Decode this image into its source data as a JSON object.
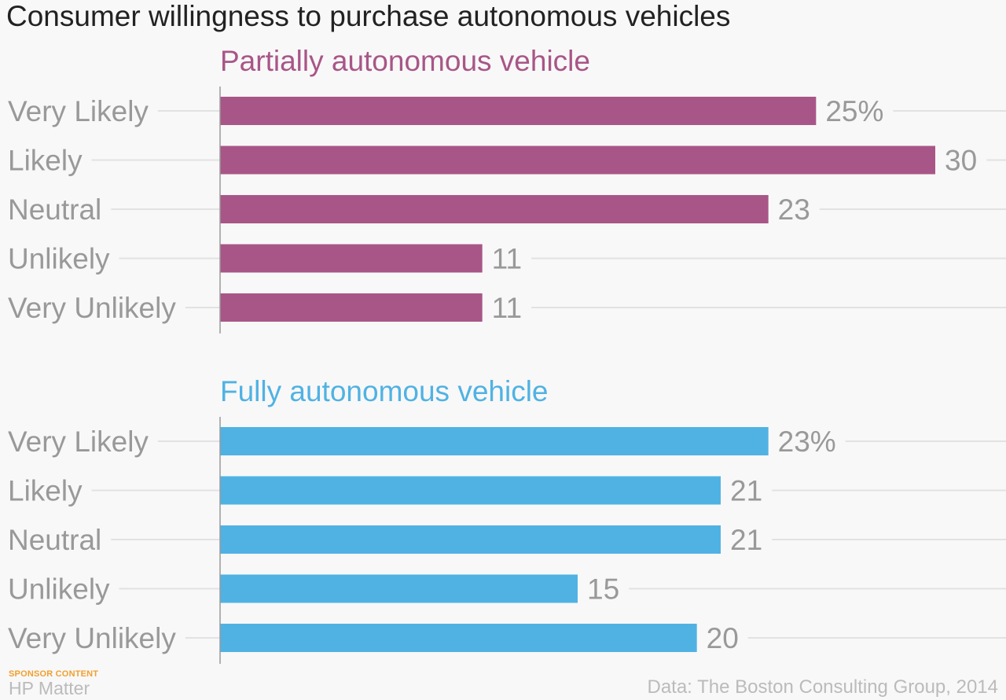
{
  "title": "Consumer willingness to purchase autonomous vehicles",
  "footer": {
    "sponsor": "SPONSOR CONTENT",
    "brand": "HP Matter",
    "source": "Data: The Boston Consulting Group, 2014"
  },
  "chart_data": [
    {
      "type": "bar",
      "orientation": "horizontal",
      "title": "Partially autonomous vehicle",
      "color": "#a85687",
      "categories": [
        "Very Likely",
        "Likely",
        "Neutral",
        "Unlikely",
        "Very Unlikely"
      ],
      "values": [
        25,
        30,
        23,
        11,
        11
      ],
      "value_labels": [
        "25%",
        "30",
        "23",
        "11",
        "11"
      ],
      "unit": "%",
      "xlim": [
        0,
        30
      ],
      "grid": true
    },
    {
      "type": "bar",
      "orientation": "horizontal",
      "title": "Fully autonomous vehicle",
      "color": "#50b2e3",
      "categories": [
        "Very Likely",
        "Likely",
        "Neutral",
        "Unlikely",
        "Very Unlikely"
      ],
      "values": [
        23,
        21,
        21,
        15,
        20
      ],
      "value_labels": [
        "23%",
        "21",
        "21",
        "15",
        "20"
      ],
      "unit": "%",
      "xlim": [
        0,
        30
      ],
      "grid": true
    }
  ]
}
